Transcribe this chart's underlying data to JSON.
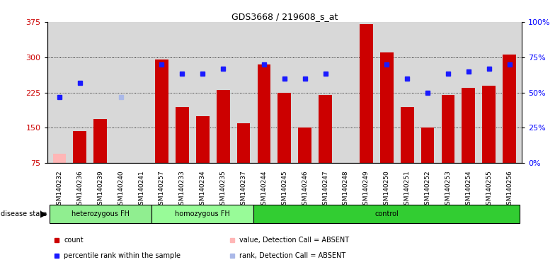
{
  "title": "GDS3668 / 219608_s_at",
  "samples": [
    "GSM140232",
    "GSM140236",
    "GSM140239",
    "GSM140240",
    "GSM140241",
    "GSM140257",
    "GSM140233",
    "GSM140234",
    "GSM140235",
    "GSM140237",
    "GSM140244",
    "GSM140245",
    "GSM140246",
    "GSM140247",
    "GSM140248",
    "GSM140249",
    "GSM140250",
    "GSM140251",
    "GSM140252",
    "GSM140253",
    "GSM140254",
    "GSM140255",
    "GSM140256"
  ],
  "groups": [
    {
      "label": "heterozygous FH",
      "start": 0,
      "end": 5,
      "color": "#90ee90"
    },
    {
      "label": "homozygous FH",
      "start": 5,
      "end": 10,
      "color": "#98fb98"
    },
    {
      "label": "control",
      "start": 10,
      "end": 23,
      "color": "#32cd32"
    }
  ],
  "count_values": [
    95,
    143,
    168,
    null,
    null,
    295,
    195,
    175,
    230,
    160,
    285,
    225,
    150,
    220,
    null,
    370,
    310,
    195,
    150,
    220,
    235,
    240,
    305
  ],
  "count_absent": [
    true,
    false,
    false,
    true,
    false,
    false,
    false,
    false,
    false,
    false,
    false,
    false,
    false,
    false,
    true,
    false,
    false,
    false,
    false,
    false,
    false,
    false,
    false
  ],
  "rank_values": [
    215,
    245,
    null,
    215,
    null,
    285,
    265,
    265,
    275,
    null,
    285,
    255,
    255,
    265,
    null,
    null,
    285,
    255,
    225,
    265,
    270,
    275,
    285
  ],
  "rank_absent": [
    false,
    false,
    true,
    true,
    true,
    false,
    false,
    false,
    false,
    true,
    false,
    false,
    false,
    false,
    true,
    true,
    false,
    false,
    false,
    false,
    false,
    false,
    false
  ],
  "ylim_left": [
    75,
    375
  ],
  "ylim_right": [
    0,
    100
  ],
  "yticks_left": [
    75,
    150,
    225,
    300,
    375
  ],
  "yticks_right": [
    0,
    25,
    50,
    75,
    100
  ],
  "color_bar_present": "#cc0000",
  "color_bar_absent": "#ffb6b6",
  "color_dot_present": "#1a1aff",
  "color_dot_absent": "#aab8e8",
  "bg_color": "#d8d8d8",
  "legend_items": [
    {
      "label": "count",
      "color": "#cc0000"
    },
    {
      "label": "percentile rank within the sample",
      "color": "#1a1aff"
    },
    {
      "label": "value, Detection Call = ABSENT",
      "color": "#ffb6b6"
    },
    {
      "label": "rank, Detection Call = ABSENT",
      "color": "#aab8e8"
    }
  ]
}
